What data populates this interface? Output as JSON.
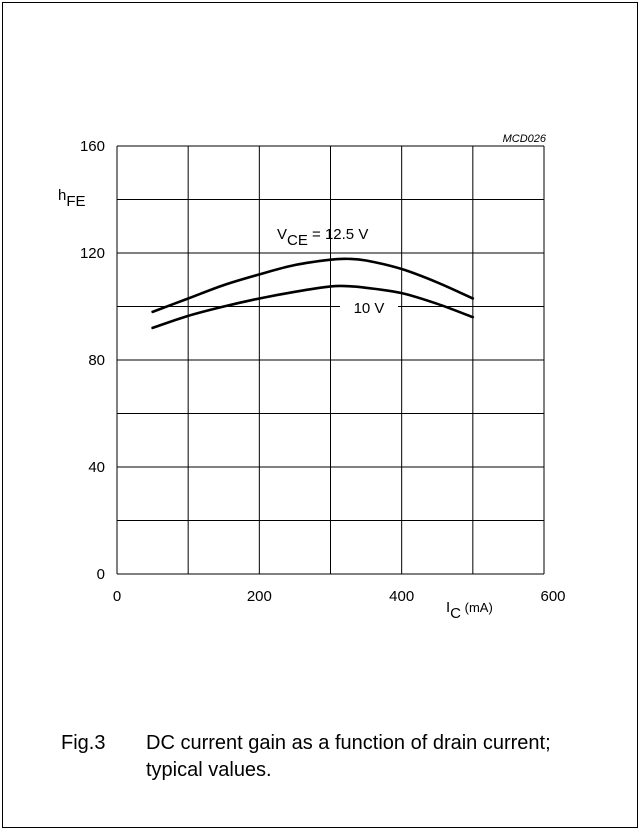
{
  "code": "MCD026",
  "caption": {
    "number": "Fig.3",
    "text": "DC current gain as a function of drain current; typical values."
  },
  "chart_data": {
    "type": "line",
    "x_axis": {
      "symbol": "I",
      "subscript": "C",
      "unit": "(mA)",
      "range": [
        0,
        600
      ],
      "ticks": [
        0,
        200,
        400,
        600
      ],
      "grid_step": 100
    },
    "y_axis": {
      "symbol": "h",
      "subscript": "FE",
      "range": [
        0,
        160
      ],
      "ticks": [
        0,
        40,
        80,
        120,
        160
      ],
      "grid_step": 20
    },
    "grid": true,
    "series": [
      {
        "label_main": "V",
        "label_sub": "CE",
        "label_rest": " = 12.5 V",
        "points": [
          [
            50,
            98
          ],
          [
            100,
            103
          ],
          [
            150,
            108
          ],
          [
            200,
            112
          ],
          [
            250,
            115.5
          ],
          [
            300,
            117.5
          ],
          [
            325,
            117.8
          ],
          [
            350,
            117.2
          ],
          [
            400,
            114
          ],
          [
            450,
            109
          ],
          [
            500,
            103
          ]
        ]
      },
      {
        "label_main": "",
        "label_sub": "",
        "label_rest": "10 V",
        "points": [
          [
            50,
            92
          ],
          [
            100,
            96.5
          ],
          [
            150,
            100
          ],
          [
            200,
            103
          ],
          [
            250,
            105.5
          ],
          [
            300,
            107.5
          ],
          [
            325,
            107.6
          ],
          [
            350,
            107
          ],
          [
            400,
            105
          ],
          [
            450,
            101
          ],
          [
            500,
            96
          ]
        ]
      }
    ]
  }
}
